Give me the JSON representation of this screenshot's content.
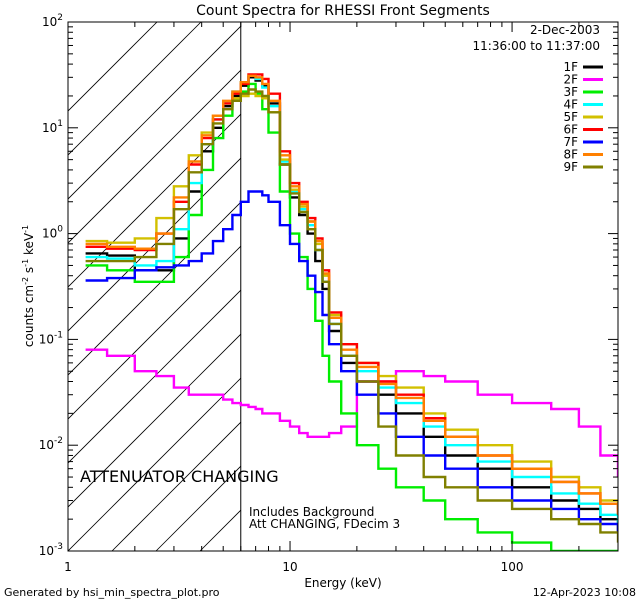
{
  "title": "Count Spectra for RHESSI Front Segments",
  "date": "2-Dec-2003",
  "time_range": "11:36:00 to 11:37:00",
  "ylabel_main": "counts cm",
  "ylabel_exp1": "-2",
  "ylabel_s": " s",
  "ylabel_exp2": "-1",
  "ylabel_kev": " keV",
  "ylabel_exp3": "-1",
  "attenuator_text": "ATTENUATOR CHANGING",
  "note_line1": "Includes Background",
  "note_line2": "Att CHANGING, FDecim 3",
  "footer_left": "Generated by hsi_min_spectra_plot.pro",
  "footer_right": "12-Apr-2023 10:08",
  "colors": {
    "attenuator": "#e8000b"
  },
  "chart_data": {
    "type": "line",
    "title": "Count Spectra for RHESSI Front Segments",
    "xlabel": "Energy (keV)",
    "ylabel": "counts cm^-2 s^-1 keV^-1",
    "xscale": "log",
    "yscale": "log",
    "xlim": [
      1,
      300
    ],
    "ylim": [
      0.001,
      100
    ],
    "attenuator_cutoff_kev": 6,
    "x_ticks": [
      {
        "value": 1,
        "label": "1"
      },
      {
        "value": 10,
        "label": "10"
      },
      {
        "value": 100,
        "label": "100"
      }
    ],
    "y_ticks": [
      {
        "value": 0.001,
        "base": "10",
        "exp": "-3"
      },
      {
        "value": 0.01,
        "base": "10",
        "exp": "-2"
      },
      {
        "value": 0.1,
        "base": "10",
        "exp": "-1"
      },
      {
        "value": 1,
        "base": "10",
        "exp": "0"
      },
      {
        "value": 10,
        "base": "10",
        "exp": "1"
      },
      {
        "value": 100,
        "base": "10",
        "exp": "2"
      }
    ],
    "x": [
      1.2,
      1.5,
      2,
      2.5,
      3,
      3.5,
      4,
      4.5,
      5,
      5.5,
      6,
      6.5,
      7,
      7.5,
      8,
      9,
      10,
      11,
      12,
      13,
      14,
      15,
      17,
      20,
      25,
      30,
      40,
      50,
      70,
      100,
      150,
      200,
      250,
      300
    ],
    "series": [
      {
        "name": "1F",
        "color": "#000000",
        "values": [
          0.65,
          0.62,
          0.45,
          0.45,
          0.9,
          2.5,
          6,
          10,
          16,
          20,
          25,
          30,
          28,
          25,
          17,
          4.5,
          2.2,
          1.5,
          1.0,
          0.55,
          0.3,
          0.12,
          0.06,
          0.04,
          0.03,
          0.02,
          0.012,
          0.008,
          0.006,
          0.004,
          0.003,
          0.0025,
          0.002,
          0.0015
        ]
      },
      {
        "name": "2F",
        "color": "#ff00ff",
        "values": [
          0.08,
          0.07,
          0.05,
          0.045,
          0.035,
          0.03,
          0.03,
          0.03,
          0.027,
          0.025,
          0.024,
          0.023,
          0.022,
          0.02,
          0.02,
          0.017,
          0.015,
          0.013,
          0.012,
          0.012,
          0.012,
          0.013,
          0.015,
          0.04,
          0.04,
          0.05,
          0.045,
          0.04,
          0.03,
          0.025,
          0.022,
          0.015,
          0.008,
          0.005
        ]
      },
      {
        "name": "3F",
        "color": "#00ee00",
        "values": [
          0.5,
          0.45,
          0.35,
          0.35,
          0.6,
          1.5,
          4,
          8,
          13,
          18,
          22,
          26,
          21,
          15,
          9,
          2.5,
          1.0,
          0.6,
          0.3,
          0.15,
          0.07,
          0.04,
          0.02,
          0.01,
          0.006,
          0.004,
          0.003,
          0.002,
          0.0015,
          0.0012,
          0.001,
          0.001,
          0.001,
          0.001
        ]
      },
      {
        "name": "4F",
        "color": "#00ffff",
        "values": [
          0.6,
          0.58,
          0.5,
          0.55,
          1.1,
          3,
          7,
          12,
          17,
          22,
          27,
          31,
          29,
          24,
          16,
          4.8,
          2.5,
          1.7,
          1.2,
          0.7,
          0.35,
          0.14,
          0.07,
          0.05,
          0.035,
          0.025,
          0.015,
          0.01,
          0.007,
          0.005,
          0.0035,
          0.0028,
          0.0022,
          0.0018
        ]
      },
      {
        "name": "5F",
        "color": "#d2c000",
        "values": [
          0.85,
          0.82,
          0.9,
          1.4,
          2.8,
          5.5,
          9,
          13,
          17,
          19,
          20,
          21,
          20,
          19,
          14,
          5,
          2.6,
          1.8,
          1.3,
          0.8,
          0.4,
          0.17,
          0.09,
          0.06,
          0.045,
          0.035,
          0.02,
          0.014,
          0.01,
          0.007,
          0.005,
          0.004,
          0.003,
          0.0025
        ]
      },
      {
        "name": "6F",
        "color": "#ff0000",
        "values": [
          0.75,
          0.72,
          0.7,
          1.0,
          2.0,
          4.5,
          8,
          12,
          17,
          21,
          26,
          32,
          32,
          29,
          21,
          6,
          3,
          2,
          1.4,
          0.9,
          0.45,
          0.18,
          0.09,
          0.06,
          0.04,
          0.03,
          0.018,
          0.012,
          0.008,
          0.006,
          0.0045,
          0.0035,
          0.0028,
          0.0022
        ]
      },
      {
        "name": "7F",
        "color": "#0000ff",
        "values": [
          0.36,
          0.38,
          0.45,
          0.48,
          0.5,
          0.55,
          0.65,
          0.85,
          1.1,
          1.5,
          2.0,
          2.5,
          2.5,
          2.3,
          2.0,
          1.2,
          0.8,
          0.55,
          0.4,
          0.28,
          0.17,
          0.09,
          0.05,
          0.03,
          0.02,
          0.012,
          0.008,
          0.006,
          0.004,
          0.003,
          0.0025,
          0.002,
          0.0018,
          0.0015
        ]
      },
      {
        "name": "8F",
        "color": "#ff8000",
        "values": [
          0.8,
          0.75,
          0.72,
          1.0,
          2.2,
          4.8,
          8.5,
          13,
          18,
          22,
          27,
          31,
          30,
          26,
          18,
          5.5,
          2.8,
          1.9,
          1.3,
          0.85,
          0.42,
          0.16,
          0.08,
          0.055,
          0.038,
          0.028,
          0.017,
          0.012,
          0.008,
          0.006,
          0.0045,
          0.0035,
          0.0028,
          0.0022
        ]
      },
      {
        "name": "9F",
        "color": "#808000",
        "values": [
          0.55,
          0.55,
          0.6,
          0.8,
          1.7,
          3.8,
          7,
          11,
          15,
          18,
          21,
          23,
          22,
          20,
          14,
          4.5,
          2.4,
          1.6,
          1.1,
          0.7,
          0.35,
          0.14,
          0.07,
          0.04,
          0.015,
          0.008,
          0.005,
          0.004,
          0.003,
          0.0025,
          0.002,
          0.0018,
          0.0015,
          0.0012
        ]
      }
    ]
  }
}
